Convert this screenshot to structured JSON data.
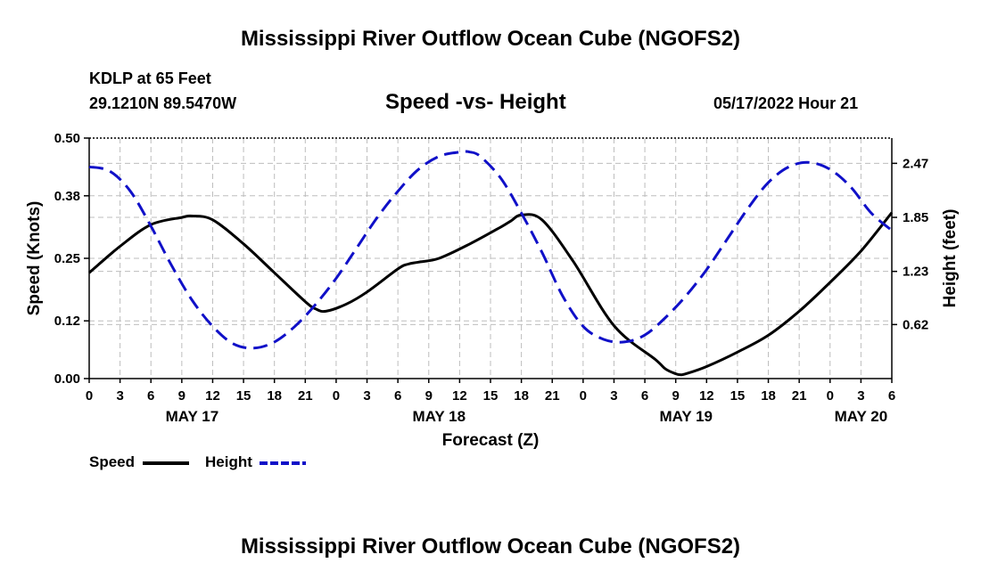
{
  "header": {
    "main_title": "Mississippi River Outflow Ocean Cube (NGOFS2)",
    "station": "KDLP at 65 Feet",
    "coords": "29.1210N  89.5470W",
    "subtitle": "Speed -vs- Height",
    "datetime": "05/17/2022 Hour 21"
  },
  "footer": {
    "repeat_title": "Mississippi River Outflow Ocean Cube (NGOFS2)"
  },
  "legend": {
    "speed_label": "Speed",
    "height_label": "Height"
  },
  "colors": {
    "speed": "#000000",
    "height": "#1010c8",
    "grid": "#bdbdbd"
  },
  "chart_data": {
    "type": "line",
    "title": "Speed -vs- Height",
    "xlabel": "Forecast (Z)",
    "ylabel": "Speed (Knots)",
    "ylabel_right": "Height (feet)",
    "xlim": [
      0,
      78
    ],
    "ylim": [
      0,
      0.5
    ],
    "ylim_right": [
      0.0,
      2.76
    ],
    "x_tick_values": [
      0,
      3,
      6,
      9,
      12,
      15,
      18,
      21,
      24,
      27,
      30,
      33,
      36,
      39,
      42,
      45,
      48,
      51,
      54,
      57,
      60,
      63,
      66,
      69,
      72,
      75,
      78
    ],
    "x_tick_labels": [
      "0",
      "3",
      "6",
      "9",
      "12",
      "15",
      "18",
      "21",
      "0",
      "3",
      "6",
      "9",
      "12",
      "15",
      "18",
      "21",
      "0",
      "3",
      "6",
      "9",
      "12",
      "15",
      "18",
      "21",
      "0",
      "3",
      "6"
    ],
    "date_labels": [
      {
        "hour": 10,
        "label": "MAY 17"
      },
      {
        "hour": 34,
        "label": "MAY 18"
      },
      {
        "hour": 58,
        "label": "MAY 19"
      },
      {
        "hour": 75,
        "label": "MAY 20"
      }
    ],
    "y_ticks": [
      0.0,
      0.12,
      0.25,
      0.38,
      0.5
    ],
    "y_tick_labels": [
      "0.00",
      "0.12",
      "0.25",
      "0.38",
      "0.50"
    ],
    "y_right_ticks": [
      0.62,
      1.23,
      1.85,
      2.47
    ],
    "y_right_tick_labels": [
      "0.62",
      "1.23",
      "1.85",
      "2.47"
    ],
    "series": [
      {
        "name": "Speed",
        "axis": "left",
        "style": "solid",
        "x": [
          0,
          3,
          6,
          9,
          10,
          12,
          15,
          18,
          21,
          22,
          23,
          25,
          27,
          30,
          31,
          32,
          34,
          37,
          40,
          41,
          42,
          44,
          47,
          51,
          55,
          56,
          57,
          57.5,
          58,
          60,
          63,
          66,
          69,
          72,
          75,
          78
        ],
        "values": [
          0.22,
          0.275,
          0.32,
          0.335,
          0.338,
          0.33,
          0.28,
          0.22,
          0.16,
          0.145,
          0.14,
          0.155,
          0.18,
          0.228,
          0.238,
          0.242,
          0.25,
          0.28,
          0.315,
          0.328,
          0.34,
          0.33,
          0.245,
          0.11,
          0.04,
          0.02,
          0.01,
          0.008,
          0.01,
          0.025,
          0.055,
          0.09,
          0.14,
          0.2,
          0.265,
          0.345
        ]
      },
      {
        "name": "Height",
        "axis": "right",
        "style": "dashed",
        "x": [
          0,
          2,
          4,
          6,
          8,
          10,
          12,
          14,
          16,
          18,
          20,
          22,
          24,
          26,
          28,
          30,
          32,
          34,
          36,
          37,
          38,
          40,
          42,
          44,
          46,
          48,
          50,
          52,
          54,
          56,
          58,
          60,
          62,
          64,
          66,
          68,
          70,
          72,
          74,
          76,
          78
        ],
        "values": [
          2.43,
          2.38,
          2.15,
          1.75,
          1.3,
          0.9,
          0.6,
          0.4,
          0.35,
          0.42,
          0.6,
          0.85,
          1.15,
          1.5,
          1.85,
          2.15,
          2.4,
          2.55,
          2.6,
          2.6,
          2.55,
          2.3,
          1.9,
          1.45,
          0.95,
          0.6,
          0.45,
          0.42,
          0.5,
          0.7,
          0.95,
          1.25,
          1.6,
          1.95,
          2.25,
          2.43,
          2.48,
          2.4,
          2.2,
          1.9,
          1.7
        ]
      }
    ]
  }
}
